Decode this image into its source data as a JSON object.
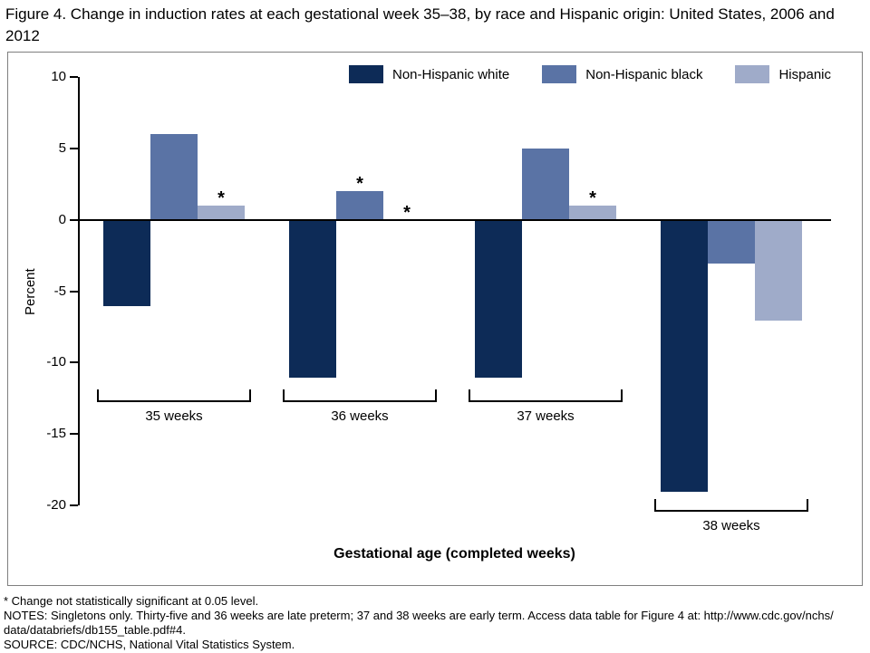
{
  "title": "Figure 4. Change in induction rates at each gestational week 35–38, by race and Hispanic origin: United States, 2006 and 2012",
  "chart_data": {
    "type": "bar",
    "title": "Figure 4. Change in induction rates at each gestational week 35–38, by race and Hispanic origin: United States, 2006 and 2012",
    "categories": [
      "35 weeks",
      "36 weeks",
      "37 weeks",
      "38 weeks"
    ],
    "series": [
      {
        "name": "Non-Hispanic white",
        "color": "#0d2b57",
        "values": [
          -6,
          -11,
          -11,
          -19
        ],
        "not_significant": [
          false,
          false,
          false,
          false
        ]
      },
      {
        "name": "Non-Hispanic black",
        "color": "#5a73a5",
        "values": [
          6,
          2,
          5,
          -3
        ],
        "not_significant": [
          false,
          true,
          false,
          false
        ]
      },
      {
        "name": "Hispanic",
        "color": "#9fabc9",
        "values": [
          1,
          0,
          1,
          -7
        ],
        "not_significant": [
          true,
          true,
          true,
          false
        ]
      }
    ],
    "marker": "*",
    "xlabel": "Gestational age (completed weeks)",
    "ylabel": "Percent",
    "ylim": [
      -20,
      10
    ],
    "yticks": [
      10,
      5,
      0,
      -5,
      -10,
      -15,
      -20
    ],
    "grid": "off",
    "legend_position": "top"
  },
  "footnotes": [
    "* Change not statistically significant at 0.05 level.",
    "NOTES: Singletons only. Thirty-five and 36 weeks are late preterm; 37 and 38 weeks are early term. Access data table for Figure 4 at: http://www.cdc.gov/nchs/",
    "data/databriefs/db155_table.pdf#4.",
    "SOURCE: CDC/NCHS, National Vital Statistics System."
  ]
}
